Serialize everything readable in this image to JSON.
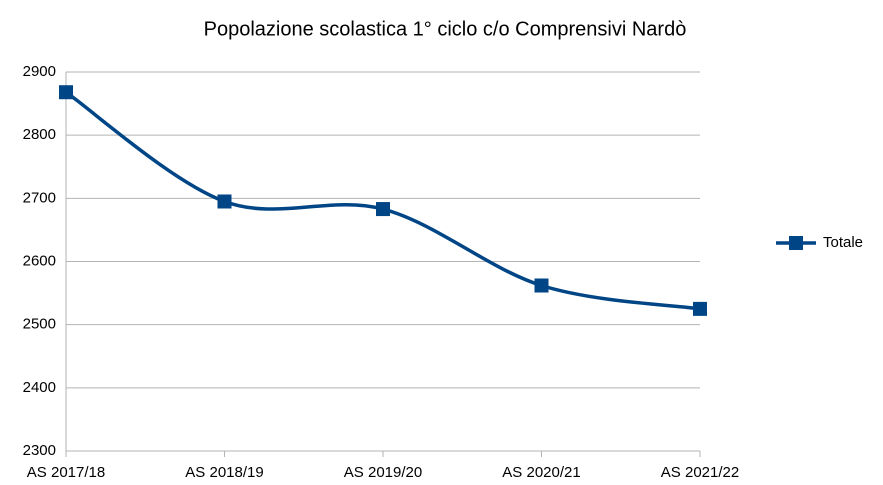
{
  "chart_data": {
    "type": "line",
    "title": "Popolazione scolastica 1° ciclo c/o Comprensivi Nardò",
    "categories": [
      "AS 2017/18",
      "AS 2018/19",
      "AS 2019/20",
      "AS 2020/21",
      "AS 2021/22"
    ],
    "series": [
      {
        "name": "Totale",
        "color": "#004586",
        "values": [
          2868,
          2695,
          2683,
          2562,
          2525
        ]
      }
    ],
    "ylim": [
      2300,
      2900
    ],
    "yticks": [
      2300,
      2400,
      2500,
      2600,
      2700,
      2800,
      2900
    ],
    "grid": true,
    "smooth": true,
    "legend": "right"
  }
}
